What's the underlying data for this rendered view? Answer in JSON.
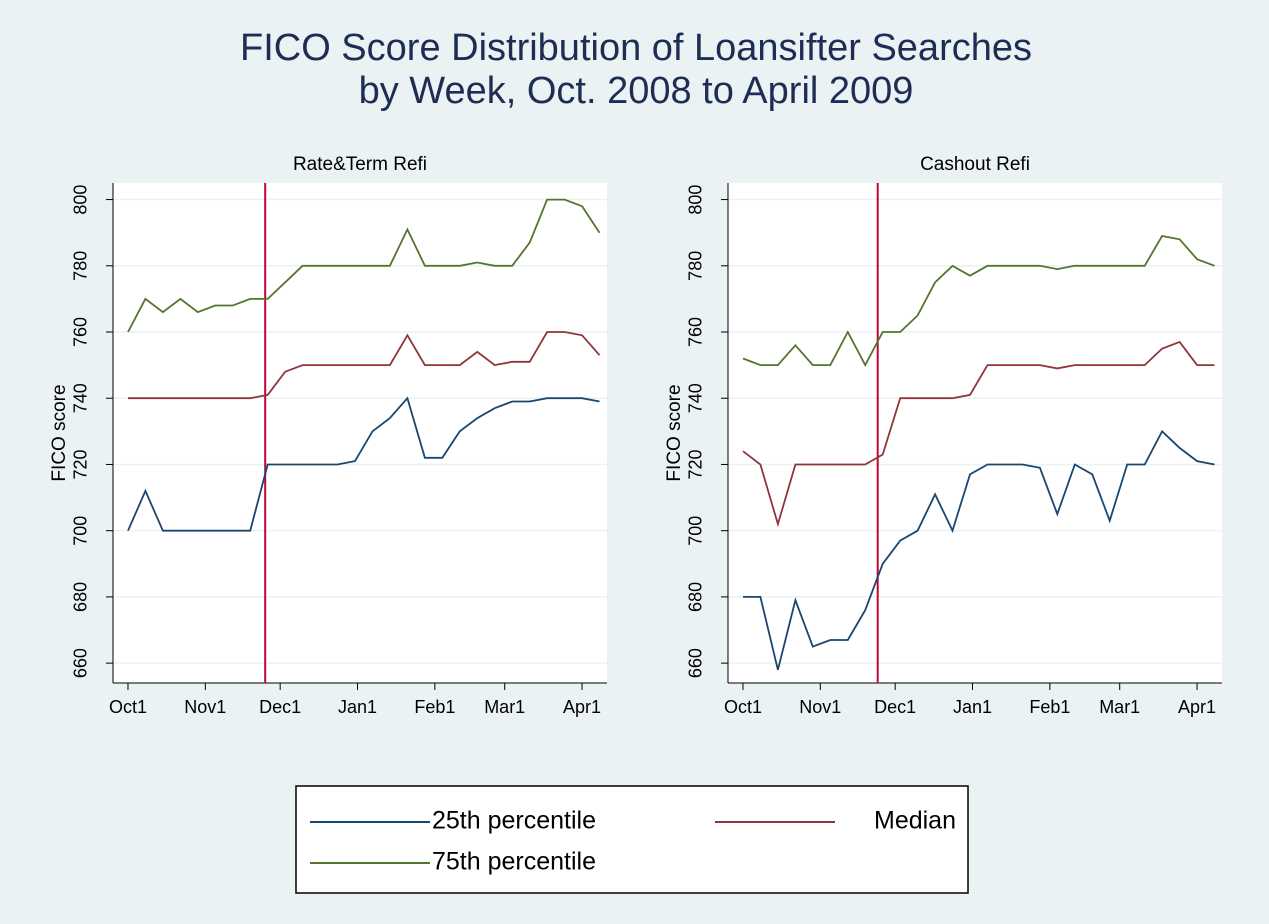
{
  "title": [
    "FICO Score Distribution of Loansifter Searches",
    "by Week, Oct. 2008 to April 2009"
  ],
  "chart_data": [
    {
      "type": "line",
      "title": "Rate&Term Refi",
      "ylabel": "FICO score",
      "x": [
        0,
        7,
        14,
        21,
        28,
        35,
        42,
        49,
        56,
        63,
        70,
        77,
        84,
        91,
        98,
        105,
        112,
        119,
        126,
        133,
        140,
        147,
        154,
        161,
        168,
        175,
        182,
        189
      ],
      "xlim": [
        -6,
        192
      ],
      "xticks": [
        {
          "value": 0,
          "label": "Oct1"
        },
        {
          "value": 31,
          "label": "Nov1"
        },
        {
          "value": 61,
          "label": "Dec1"
        },
        {
          "value": 92,
          "label": "Jan1"
        },
        {
          "value": 123,
          "label": "Feb1"
        },
        {
          "value": 151,
          "label": "Mar1"
        },
        {
          "value": 182,
          "label": "Apr1"
        }
      ],
      "ylim": [
        654,
        805
      ],
      "yticks": [
        660,
        680,
        700,
        720,
        740,
        760,
        780,
        800
      ],
      "grid": true,
      "vline": 55,
      "vline_color": "#c10534",
      "series": [
        {
          "name": "25th percentile",
          "color": "#1a476f",
          "values": [
            700,
            712,
            700,
            700,
            700,
            700,
            700,
            700,
            720,
            720,
            720,
            720,
            720,
            721,
            730,
            734,
            740,
            722,
            722,
            730,
            734,
            737,
            739,
            739,
            740,
            740,
            740,
            739
          ]
        },
        {
          "name": "Median",
          "color": "#90353b",
          "values": [
            740,
            740,
            740,
            740,
            740,
            740,
            740,
            740,
            741,
            748,
            750,
            750,
            750,
            750,
            750,
            750,
            759,
            750,
            750,
            750,
            754,
            750,
            751,
            751,
            760,
            760,
            759,
            753
          ]
        },
        {
          "name": "75th percentile",
          "color": "#55752f",
          "values": [
            760,
            770,
            766,
            770,
            766,
            768,
            768,
            770,
            770,
            775,
            780,
            780,
            780,
            780,
            780,
            780,
            791,
            780,
            780,
            780,
            781,
            780,
            780,
            787,
            800,
            800,
            798,
            790
          ]
        }
      ]
    },
    {
      "type": "line",
      "title": "Cashout Refi",
      "ylabel": "FICO score",
      "x": [
        0,
        7,
        14,
        21,
        28,
        35,
        42,
        49,
        56,
        63,
        70,
        77,
        84,
        91,
        98,
        105,
        112,
        119,
        126,
        133,
        140,
        147,
        154,
        161,
        168,
        175,
        182,
        189
      ],
      "xlim": [
        -6,
        192
      ],
      "xticks": [
        {
          "value": 0,
          "label": "Oct1"
        },
        {
          "value": 31,
          "label": "Nov1"
        },
        {
          "value": 61,
          "label": "Dec1"
        },
        {
          "value": 92,
          "label": "Jan1"
        },
        {
          "value": 123,
          "label": "Feb1"
        },
        {
          "value": 151,
          "label": "Mar1"
        },
        {
          "value": 182,
          "label": "Apr1"
        }
      ],
      "ylim": [
        654,
        805
      ],
      "yticks": [
        660,
        680,
        700,
        720,
        740,
        760,
        780,
        800
      ],
      "grid": true,
      "vline": 54,
      "vline_color": "#c10534",
      "series": [
        {
          "name": "25th percentile",
          "color": "#1a476f",
          "values": [
            680,
            680,
            658,
            679,
            665,
            667,
            667,
            676,
            690,
            697,
            700,
            711,
            700,
            717,
            720,
            720,
            720,
            719,
            705,
            720,
            717,
            703,
            720,
            720,
            730,
            725,
            721,
            720
          ]
        },
        {
          "name": "Median",
          "color": "#90353b",
          "values": [
            724,
            720,
            702,
            720,
            720,
            720,
            720,
            720,
            723,
            740,
            740,
            740,
            740,
            741,
            750,
            750,
            750,
            750,
            749,
            750,
            750,
            750,
            750,
            750,
            755,
            757,
            750,
            750
          ]
        },
        {
          "name": "75th percentile",
          "color": "#55752f",
          "values": [
            752,
            750,
            750,
            756,
            750,
            750,
            760,
            750,
            760,
            760,
            765,
            775,
            780,
            777,
            780,
            780,
            780,
            780,
            779,
            780,
            780,
            780,
            780,
            780,
            789,
            788,
            782,
            780
          ]
        }
      ]
    }
  ]
}
